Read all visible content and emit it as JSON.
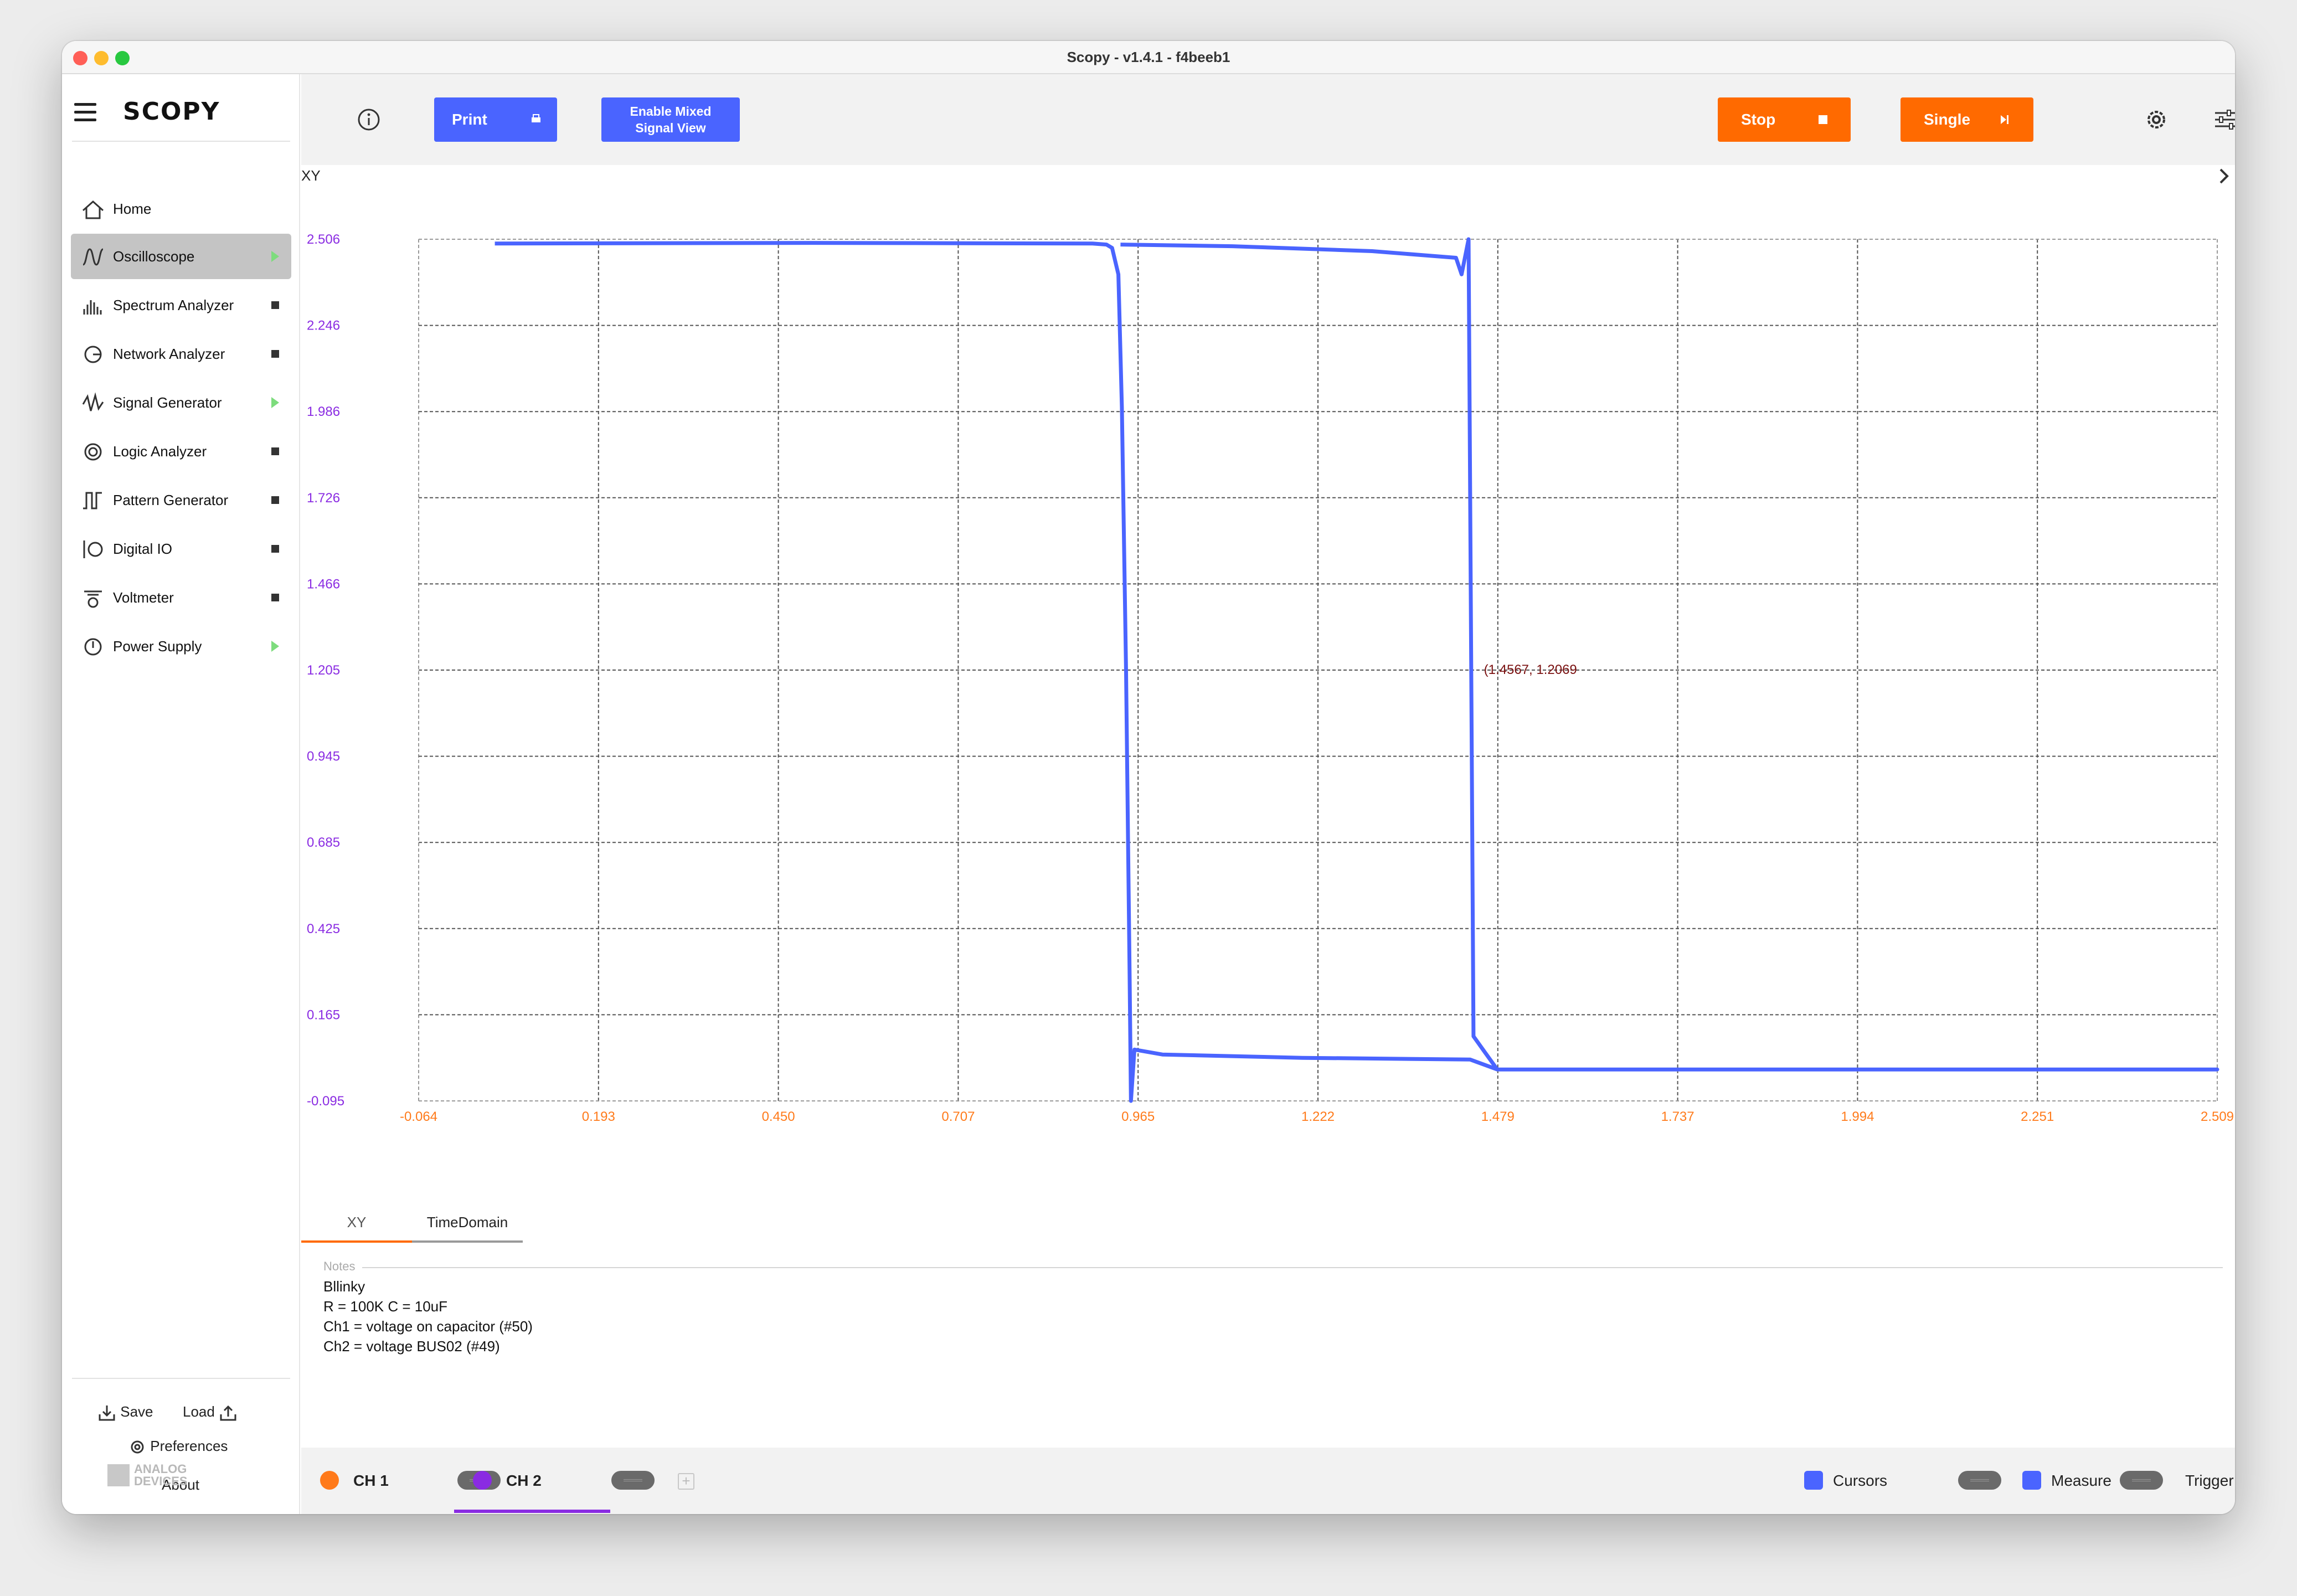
{
  "window": {
    "title": "Scopy - v1.4.1 - f4beeb1"
  },
  "sidebar": {
    "logo": "SCOPY",
    "items": [
      {
        "label": "Home",
        "icon": "home-icon",
        "status": "none"
      },
      {
        "label": "Oscilloscope",
        "icon": "oscilloscope-icon",
        "status": "running"
      },
      {
        "label": "Spectrum Analyzer",
        "icon": "spectrum-icon",
        "status": "stopped"
      },
      {
        "label": "Network Analyzer",
        "icon": "network-icon",
        "status": "stopped"
      },
      {
        "label": "Signal Generator",
        "icon": "signal-generator-icon",
        "status": "running"
      },
      {
        "label": "Logic Analyzer",
        "icon": "logic-analyzer-icon",
        "status": "stopped"
      },
      {
        "label": "Pattern Generator",
        "icon": "pattern-generator-icon",
        "status": "stopped"
      },
      {
        "label": "Digital IO",
        "icon": "digital-io-icon",
        "status": "stopped"
      },
      {
        "label": "Voltmeter",
        "icon": "voltmeter-icon",
        "status": "stopped"
      },
      {
        "label": "Power Supply",
        "icon": "power-supply-icon",
        "status": "running"
      }
    ],
    "save_label": "Save",
    "load_label": "Load",
    "preferences_label": "Preferences",
    "about_label": "About",
    "vendor_logo": "ANALOG DEVICES"
  },
  "toolbar": {
    "print_label": "Print",
    "mixed_signal_label_1": "Enable Mixed",
    "mixed_signal_label_2": "Signal View",
    "stop_label": "Stop",
    "single_label": "Single"
  },
  "tabs": [
    {
      "label": "XY",
      "active": true
    },
    {
      "label": "TimeDomain",
      "active": false
    }
  ],
  "notes": {
    "label": "Notes",
    "lines": [
      "Bllinky",
      "R = 100K C = 10uF",
      "Ch1 = voltage on capacitor (#50)",
      "Ch2 = voltage BUS02 (#49)"
    ]
  },
  "bottombar": {
    "ch1_label": "CH 1",
    "ch2_label": "CH 2",
    "ch1_color": "#ff7a1a",
    "ch2_color": "#8a2be2",
    "cursors_label": "Cursors",
    "measure_label": "Measure",
    "trigger_label": "Trigger"
  },
  "colors": {
    "accent_blue": "#4a64ff",
    "accent_orange": "#ff6a00",
    "trace": "#4a64ff",
    "x_ticks": "#ff7a1a",
    "y_ticks": "#8a2be2"
  },
  "chart_data": {
    "type": "line",
    "title": "XY",
    "xlabel": "",
    "ylabel": "",
    "xlim": [
      -0.064,
      2.509
    ],
    "ylim": [
      -0.095,
      2.506
    ],
    "x_ticks": [
      "-0.064",
      "0.193",
      "0.450",
      "0.707",
      "0.965",
      "1.222",
      "1.479",
      "1.737",
      "1.994",
      "2.251",
      "2.509"
    ],
    "y_ticks": [
      "2.506",
      "2.246",
      "1.986",
      "1.726",
      "1.466",
      "1.205",
      "0.945",
      "0.685",
      "0.425",
      "0.165",
      "-0.095"
    ],
    "grid": true,
    "annotation": {
      "text": "(1.4567, 1.2069",
      "x": 1.4567,
      "y": 1.2069
    },
    "series": [
      {
        "points": [
          [
            0.045,
            2.493
          ],
          [
            0.5,
            2.495
          ],
          [
            0.9,
            2.493
          ],
          [
            0.92,
            2.49
          ],
          [
            0.928,
            2.48
          ],
          [
            0.937,
            2.4
          ],
          [
            0.942,
            2.0
          ],
          [
            0.948,
            1.2
          ],
          [
            0.953,
            0.3
          ],
          [
            0.955,
            -0.095
          ],
          [
            0.96,
            0.06
          ],
          [
            1.0,
            0.045
          ],
          [
            1.2,
            0.035
          ],
          [
            1.44,
            0.03
          ],
          [
            1.479,
            0.0
          ],
          [
            2.509,
            0.0
          ],
          [
            1.479,
            0.0
          ],
          [
            1.462,
            0.05
          ],
          [
            1.445,
            0.1
          ],
          [
            1.438,
            2.506
          ],
          [
            1.428,
            2.4
          ],
          [
            1.42,
            2.45
          ],
          [
            1.3,
            2.47
          ],
          [
            1.1,
            2.485
          ],
          [
            0.94,
            2.49
          ]
        ]
      }
    ]
  }
}
